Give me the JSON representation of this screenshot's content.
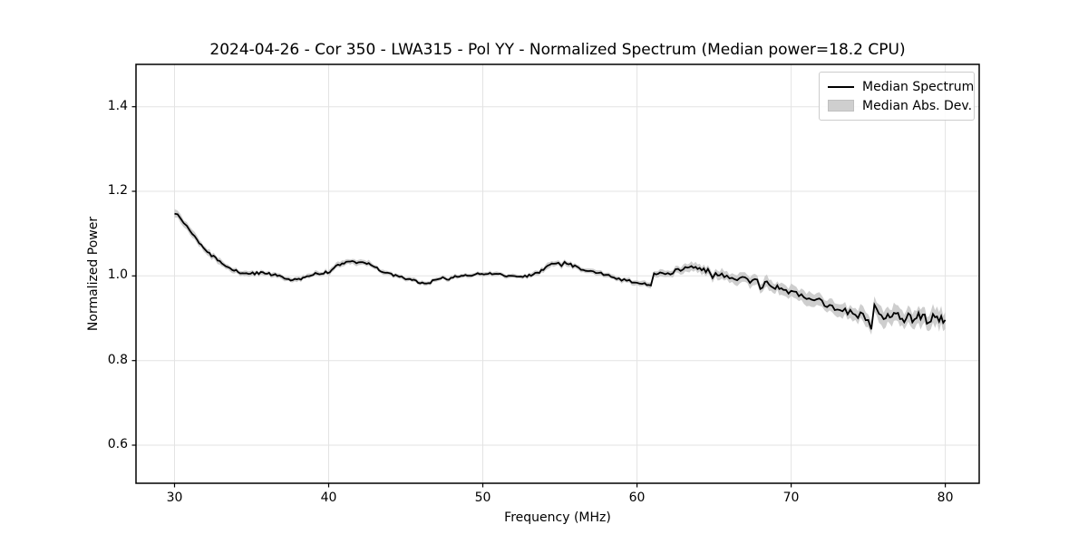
{
  "figure": {
    "title": "2024-04-26 - Cor 350 - LWA315 - Pol YY - Normalized Spectrum (Median power=18.2 CPU)"
  },
  "chart_data": {
    "type": "line",
    "title": "2024-04-26 - Cor 350 - LWA315 - Pol YY - Normalized Spectrum (Median power=18.2 CPU)",
    "xlabel": "Frequency (MHz)",
    "ylabel": "Normalized Power",
    "xlim": [
      27.5,
      82.2
    ],
    "ylim": [
      0.51,
      1.5
    ],
    "x_ticks": [
      30,
      40,
      50,
      60,
      70,
      80
    ],
    "x_tick_labels": [
      "30",
      "40",
      "50",
      "60",
      "70",
      "80"
    ],
    "y_ticks": [
      0.6,
      0.8,
      1.0,
      1.2,
      1.4
    ],
    "y_tick_labels": [
      "0.6",
      "0.8",
      "1.0",
      "1.2",
      "1.4"
    ],
    "grid": true,
    "legend": {
      "position": "upper right",
      "entries": [
        {
          "label": "Median Spectrum",
          "type": "line",
          "color": "#000000"
        },
        {
          "label": "Median Abs. Dev.",
          "type": "patch",
          "color": "#cfcfcf"
        }
      ]
    },
    "colors": {
      "line": "#000000",
      "band": "#c9c9c9",
      "grid": "#e3e3e3",
      "spine": "#000000",
      "background": "#ffffff"
    },
    "series": [
      {
        "name": "Median Spectrum",
        "comment": "points are [frequency_MHz, normalized_power, median_abs_dev_half_width]",
        "points": [
          [
            30.0,
            1.15,
            0.01
          ],
          [
            30.2,
            1.142,
            0.01
          ],
          [
            30.4,
            1.135,
            0.01
          ],
          [
            30.6,
            1.126,
            0.009
          ],
          [
            30.8,
            1.118,
            0.009
          ],
          [
            31.0,
            1.108,
            0.009
          ],
          [
            31.3,
            1.094,
            0.009
          ],
          [
            31.6,
            1.08,
            0.008
          ],
          [
            32.0,
            1.063,
            0.008
          ],
          [
            32.4,
            1.048,
            0.008
          ],
          [
            32.8,
            1.036,
            0.008
          ],
          [
            33.2,
            1.026,
            0.007
          ],
          [
            33.6,
            1.017,
            0.007
          ],
          [
            34.0,
            1.011,
            0.007
          ],
          [
            34.4,
            1.008,
            0.006
          ],
          [
            34.8,
            1.005,
            0.006
          ],
          [
            35.2,
            1.006,
            0.006
          ],
          [
            35.6,
            1.008,
            0.006
          ],
          [
            36.0,
            1.005,
            0.006
          ],
          [
            36.4,
            1.004,
            0.006
          ],
          [
            36.8,
            1.0,
            0.006
          ],
          [
            37.0,
            0.996,
            0.006
          ],
          [
            37.4,
            0.992,
            0.006
          ],
          [
            37.8,
            0.99,
            0.006
          ],
          [
            38.2,
            0.994,
            0.006
          ],
          [
            38.6,
            1.0,
            0.006
          ],
          [
            39.0,
            1.004,
            0.006
          ],
          [
            39.4,
            1.006,
            0.006
          ],
          [
            39.8,
            1.008,
            0.006
          ],
          [
            40.2,
            1.013,
            0.007
          ],
          [
            40.6,
            1.025,
            0.007
          ],
          [
            41.0,
            1.032,
            0.007
          ],
          [
            41.4,
            1.034,
            0.007
          ],
          [
            41.8,
            1.033,
            0.007
          ],
          [
            42.2,
            1.034,
            0.007
          ],
          [
            42.6,
            1.028,
            0.007
          ],
          [
            43.0,
            1.02,
            0.006
          ],
          [
            43.4,
            1.012,
            0.006
          ],
          [
            43.8,
            1.008,
            0.005
          ],
          [
            44.2,
            1.002,
            0.005
          ],
          [
            44.6,
            0.998,
            0.005
          ],
          [
            45.0,
            0.994,
            0.005
          ],
          [
            45.4,
            0.99,
            0.005
          ],
          [
            45.8,
            0.986,
            0.005
          ],
          [
            46.2,
            0.982,
            0.005
          ],
          [
            46.6,
            0.985,
            0.005
          ],
          [
            47.0,
            0.992,
            0.005
          ],
          [
            47.4,
            0.995,
            0.005
          ],
          [
            47.8,
            0.993,
            0.005
          ],
          [
            48.2,
            0.998,
            0.005
          ],
          [
            48.6,
            1.002,
            0.005
          ],
          [
            49.0,
            1.0,
            0.005
          ],
          [
            49.4,
            1.003,
            0.005
          ],
          [
            49.8,
            1.005,
            0.005
          ],
          [
            50.2,
            1.006,
            0.005
          ],
          [
            50.6,
            1.005,
            0.005
          ],
          [
            51.0,
            1.004,
            0.005
          ],
          [
            51.4,
            1.001,
            0.005
          ],
          [
            51.8,
            0.999,
            0.005
          ],
          [
            52.2,
            0.997,
            0.005
          ],
          [
            52.6,
            0.998,
            0.005
          ],
          [
            53.0,
            1.001,
            0.006
          ],
          [
            53.4,
            1.006,
            0.006
          ],
          [
            53.8,
            1.012,
            0.006
          ],
          [
            54.2,
            1.022,
            0.007
          ],
          [
            54.6,
            1.03,
            0.007
          ],
          [
            54.9,
            1.034,
            0.007
          ],
          [
            55.1,
            1.02,
            0.007
          ],
          [
            55.3,
            1.035,
            0.007
          ],
          [
            55.7,
            1.026,
            0.007
          ],
          [
            56.1,
            1.02,
            0.006
          ],
          [
            56.5,
            1.016,
            0.006
          ],
          [
            57.0,
            1.012,
            0.006
          ],
          [
            57.5,
            1.008,
            0.006
          ],
          [
            58.0,
            1.002,
            0.006
          ],
          [
            58.5,
            0.996,
            0.006
          ],
          [
            59.0,
            0.991,
            0.006
          ],
          [
            59.5,
            0.988,
            0.006
          ],
          [
            60.0,
            0.984,
            0.007
          ],
          [
            60.5,
            0.982,
            0.007
          ],
          [
            60.9,
            0.978,
            0.008
          ],
          [
            61.1,
            1.003,
            0.008
          ],
          [
            61.5,
            1.008,
            0.008
          ],
          [
            62.0,
            1.006,
            0.009
          ],
          [
            62.5,
            1.012,
            0.009
          ],
          [
            63.0,
            1.018,
            0.01
          ],
          [
            63.4,
            1.026,
            0.011
          ],
          [
            63.8,
            1.022,
            0.011
          ],
          [
            64.2,
            1.018,
            0.011
          ],
          [
            64.6,
            1.012,
            0.011
          ],
          [
            64.9,
            0.998,
            0.011
          ],
          [
            65.1,
            1.008,
            0.012
          ],
          [
            65.5,
            1.003,
            0.012
          ],
          [
            66.0,
            0.999,
            0.012
          ],
          [
            66.5,
            0.996,
            0.013
          ],
          [
            67.0,
            0.992,
            0.013
          ],
          [
            67.5,
            0.988,
            0.014
          ],
          [
            67.8,
            0.996,
            0.014
          ],
          [
            68.0,
            0.97,
            0.015
          ],
          [
            68.3,
            0.984,
            0.015
          ],
          [
            68.7,
            0.979,
            0.015
          ],
          [
            69.1,
            0.974,
            0.015
          ],
          [
            69.5,
            0.97,
            0.015
          ],
          [
            70.0,
            0.964,
            0.016
          ],
          [
            70.5,
            0.957,
            0.016
          ],
          [
            71.0,
            0.95,
            0.016
          ],
          [
            71.5,
            0.944,
            0.016
          ],
          [
            72.0,
            0.938,
            0.016
          ],
          [
            72.5,
            0.931,
            0.017
          ],
          [
            73.0,
            0.924,
            0.017
          ],
          [
            73.5,
            0.918,
            0.017
          ],
          [
            74.0,
            0.912,
            0.017
          ],
          [
            74.5,
            0.906,
            0.018
          ],
          [
            75.0,
            0.898,
            0.018
          ],
          [
            75.2,
            0.882,
            0.018
          ],
          [
            75.4,
            0.925,
            0.02
          ],
          [
            75.7,
            0.903,
            0.02
          ],
          [
            76.0,
            0.908,
            0.021
          ],
          [
            76.4,
            0.898,
            0.021
          ],
          [
            76.8,
            0.907,
            0.022
          ],
          [
            77.2,
            0.899,
            0.022
          ],
          [
            77.6,
            0.906,
            0.022
          ],
          [
            78.0,
            0.898,
            0.022
          ],
          [
            78.4,
            0.905,
            0.022
          ],
          [
            78.8,
            0.898,
            0.022
          ],
          [
            79.2,
            0.904,
            0.022
          ],
          [
            79.6,
            0.899,
            0.022
          ],
          [
            80.0,
            0.896,
            0.022
          ]
        ]
      },
      {
        "name": "Median Abs. Dev.",
        "type": "band",
        "around": "Median Spectrum"
      }
    ]
  }
}
